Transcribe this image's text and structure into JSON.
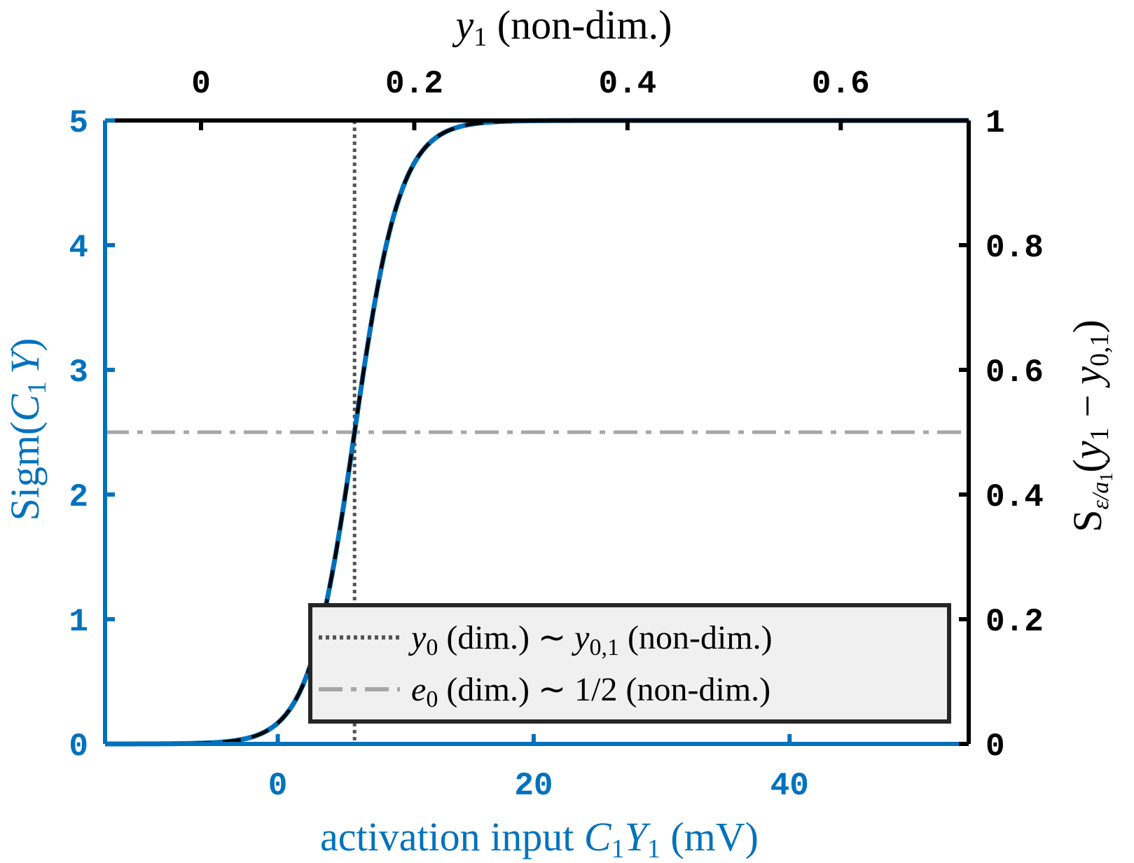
{
  "chart_data": {
    "type": "line",
    "colors": {
      "blue": "#0072BD",
      "black": "#000000",
      "dotted": "#555555",
      "dashdot": "#A6A6A6",
      "legend_bg": "#F0F0F0"
    },
    "x_bottom": {
      "label_prefix": "activation input ",
      "label_var": "C",
      "label_sub": "1",
      "label_var2": "Y",
      "label_sub2": "1",
      "label_suffix": " (mV)",
      "lim": [
        -13.5,
        54
      ],
      "ticks": [
        0,
        20,
        40
      ],
      "tick_labels": [
        "0",
        "20",
        "40"
      ]
    },
    "x_top": {
      "label_var": "y",
      "label_sub": "1",
      "label_suffix": " (non-dim.)",
      "lim": [
        -0.09,
        0.72
      ],
      "ticks": [
        0,
        0.2,
        0.4,
        0.6
      ],
      "tick_labels": [
        "0",
        "0.2",
        "0.4",
        "0.6"
      ]
    },
    "y_left": {
      "label_prefix": "Sigm(",
      "label_var": "C",
      "label_sub": "1",
      "label_var2": "Y",
      "label_suffix": ")",
      "lim": [
        0,
        5
      ],
      "ticks": [
        0,
        1,
        2,
        3,
        4,
        5
      ],
      "tick_labels": [
        "0",
        "1",
        "2",
        "3",
        "4",
        "5"
      ]
    },
    "y_right": {
      "label_prefix": "S",
      "label_sub": "ε/a",
      "label_subsub": "1",
      "label_open": "(",
      "label_var": "y",
      "label_var_sub": "1",
      "label_minus": " − ",
      "label_var2": "y",
      "label_var2_sub": "0,1",
      "label_close": ")",
      "lim": [
        0,
        1
      ],
      "ticks": [
        0,
        0.2,
        0.4,
        0.6,
        0.8,
        1
      ],
      "tick_labels": [
        "0",
        "0.2",
        "0.4",
        "0.6",
        "0.8",
        "1"
      ]
    },
    "series": [
      {
        "name": "Sigm(C1 Y)",
        "axis": "left",
        "style": "solid",
        "color": "#0072BD",
        "function": "sigmoid",
        "e0": 2.5,
        "v0": 6,
        "r": 0.56
      },
      {
        "name": "S(y1 - y0,1)",
        "axis": "left",
        "style": "dashed",
        "color": "#000000",
        "function": "sigmoid",
        "e0": 2.5,
        "v0": 6,
        "r": 0.56
      }
    ],
    "reference_lines": [
      {
        "orientation": "vertical",
        "x": 6,
        "style": "dotted",
        "color": "#555555"
      },
      {
        "orientation": "horizontal",
        "y": 2.5,
        "style": "dashdot",
        "color": "#A6A6A6"
      }
    ],
    "legend": {
      "placement": "bottom-right",
      "entries": [
        {
          "style": "dotted",
          "var": "y",
          "sub": "0",
          "text_mid": " (dim.) ∼ ",
          "var2": "y",
          "sub2": "0,1",
          "text_end": " (non-dim.)"
        },
        {
          "style": "dashdot",
          "var": "e",
          "sub": "0",
          "text_mid": " (dim.) ∼ ",
          "plain": "1/2",
          "text_end": " (non-dim.)"
        }
      ]
    }
  }
}
